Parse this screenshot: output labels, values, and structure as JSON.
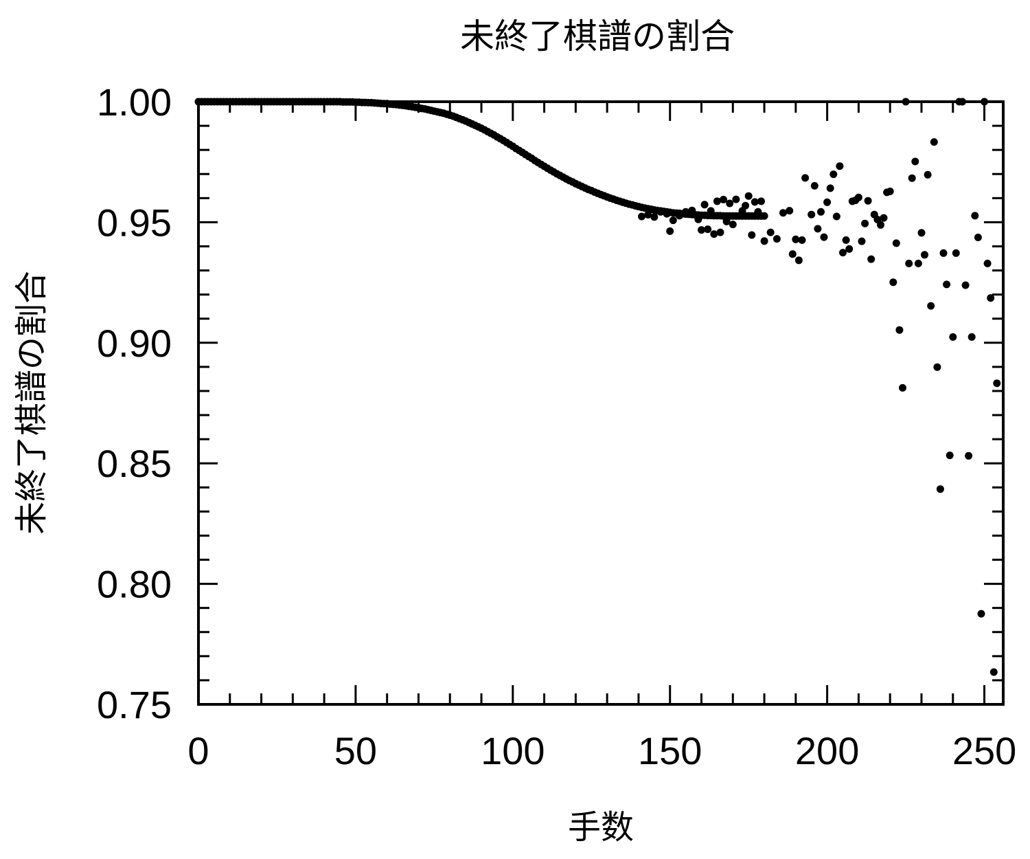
{
  "chart_data": {
    "type": "scatter",
    "title": "未終了棋譜の割合",
    "xlabel": "手数",
    "ylabel": "未終了棋譜の割合",
    "xlim": [
      0,
      256
    ],
    "ylim": [
      0.75,
      1.0
    ],
    "x_ticks": [
      0,
      50,
      100,
      150,
      200,
      250
    ],
    "x_tick_labels": [
      "0",
      "50",
      "100",
      "150",
      "200",
      "250"
    ],
    "y_ticks": [
      0.75,
      0.8,
      0.85,
      0.9,
      0.95,
      1.0
    ],
    "y_tick_labels": [
      "0.75",
      "0.80",
      "0.85",
      "0.90",
      "0.95",
      "1.00"
    ],
    "grid": false,
    "marker_color": "#000000",
    "points": [
      [
        0,
        1.0
      ],
      [
        1,
        1.0
      ],
      [
        2,
        1.0
      ],
      [
        3,
        1.0
      ],
      [
        4,
        1.0
      ],
      [
        5,
        1.0
      ],
      [
        6,
        1.0
      ],
      [
        7,
        1.0
      ],
      [
        8,
        1.0
      ],
      [
        9,
        1.0
      ],
      [
        10,
        1.0
      ],
      [
        11,
        1.0
      ],
      [
        12,
        1.0
      ],
      [
        13,
        1.0
      ],
      [
        14,
        1.0
      ],
      [
        15,
        1.0
      ],
      [
        16,
        1.0
      ],
      [
        17,
        1.0
      ],
      [
        18,
        1.0
      ],
      [
        19,
        1.0
      ],
      [
        20,
        1.0
      ],
      [
        21,
        1.0
      ],
      [
        22,
        1.0
      ],
      [
        23,
        1.0
      ],
      [
        24,
        1.0
      ],
      [
        25,
        1.0
      ],
      [
        26,
        1.0
      ],
      [
        27,
        1.0
      ],
      [
        28,
        1.0
      ],
      [
        29,
        1.0
      ],
      [
        30,
        1.0
      ],
      [
        31,
        1.0
      ],
      [
        32,
        1.0
      ],
      [
        33,
        1.0
      ],
      [
        34,
        1.0
      ],
      [
        35,
        1.0
      ],
      [
        36,
        1.0
      ],
      [
        37,
        1.0
      ],
      [
        38,
        1.0
      ],
      [
        39,
        1.0
      ],
      [
        40,
        1.0
      ],
      [
        41,
        1.0
      ],
      [
        42,
        1.0
      ],
      [
        43,
        1.0
      ],
      [
        44,
        1.0
      ],
      [
        45,
        1.0
      ],
      [
        46,
        0.9999
      ],
      [
        47,
        0.9999
      ],
      [
        48,
        0.9999
      ],
      [
        49,
        0.9999
      ],
      [
        50,
        0.9998
      ],
      [
        51,
        0.9998
      ],
      [
        52,
        0.9997
      ],
      [
        53,
        0.9997
      ],
      [
        54,
        0.9996
      ],
      [
        55,
        0.9996
      ],
      [
        56,
        0.9995
      ],
      [
        57,
        0.9994
      ],
      [
        58,
        0.9993
      ],
      [
        59,
        0.9992
      ],
      [
        60,
        0.9992
      ],
      [
        61,
        0.999
      ],
      [
        62,
        0.9989
      ],
      [
        63,
        0.9988
      ],
      [
        64,
        0.9986
      ],
      [
        65,
        0.9985
      ],
      [
        66,
        0.9983
      ],
      [
        67,
        0.9981
      ],
      [
        68,
        0.9979
      ],
      [
        69,
        0.9977
      ],
      [
        70,
        0.9975
      ],
      [
        71,
        0.9972
      ],
      [
        72,
        0.997
      ],
      [
        73,
        0.9967
      ],
      [
        74,
        0.9964
      ],
      [
        75,
        0.9961
      ],
      [
        76,
        0.9958
      ],
      [
        77,
        0.9955
      ],
      [
        78,
        0.9952
      ],
      [
        79,
        0.9948
      ],
      [
        80,
        0.9944
      ],
      [
        81,
        0.994
      ],
      [
        82,
        0.9935
      ],
      [
        83,
        0.993
      ],
      [
        84,
        0.9925
      ],
      [
        85,
        0.992
      ],
      [
        86,
        0.9914
      ],
      [
        87,
        0.9908
      ],
      [
        88,
        0.9902
      ],
      [
        89,
        0.9896
      ],
      [
        90,
        0.989
      ],
      [
        91,
        0.9883
      ],
      [
        92,
        0.9876
      ],
      [
        93,
        0.9869
      ],
      [
        94,
        0.9862
      ],
      [
        95,
        0.9854
      ],
      [
        96,
        0.9847
      ],
      [
        97,
        0.9839
      ],
      [
        98,
        0.9831
      ],
      [
        99,
        0.9823
      ],
      [
        100,
        0.9815
      ],
      [
        101,
        0.9806
      ],
      [
        102,
        0.9798
      ],
      [
        103,
        0.979
      ],
      [
        104,
        0.9781
      ],
      [
        105,
        0.9773
      ],
      [
        106,
        0.9765
      ],
      [
        107,
        0.9756
      ],
      [
        108,
        0.9748
      ],
      [
        109,
        0.974
      ],
      [
        110,
        0.9732
      ],
      [
        111,
        0.9724
      ],
      [
        112,
        0.9716
      ],
      [
        113,
        0.9709
      ],
      [
        114,
        0.9701
      ],
      [
        115,
        0.9694
      ],
      [
        116,
        0.9687
      ],
      [
        117,
        0.968
      ],
      [
        118,
        0.9673
      ],
      [
        119,
        0.9667
      ],
      [
        120,
        0.966
      ],
      [
        121,
        0.9654
      ],
      [
        122,
        0.9648
      ],
      [
        123,
        0.9642
      ],
      [
        124,
        0.9636
      ],
      [
        125,
        0.9631
      ],
      [
        126,
        0.9625
      ],
      [
        127,
        0.962
      ],
      [
        128,
        0.9615
      ],
      [
        129,
        0.961
      ],
      [
        130,
        0.9605
      ],
      [
        131,
        0.96
      ],
      [
        132,
        0.9596
      ],
      [
        133,
        0.9591
      ],
      [
        134,
        0.9587
      ],
      [
        135,
        0.9583
      ],
      [
        136,
        0.9579
      ],
      [
        137,
        0.9575
      ],
      [
        138,
        0.9572
      ],
      [
        139,
        0.9568
      ],
      [
        140,
        0.9565
      ],
      [
        141,
        0.9562
      ],
      [
        142,
        0.9559
      ],
      [
        143,
        0.9556
      ],
      [
        144,
        0.9554
      ],
      [
        145,
        0.9551
      ],
      [
        146,
        0.9549
      ],
      [
        147,
        0.9547
      ],
      [
        148,
        0.9545
      ],
      [
        149,
        0.9543
      ],
      [
        150,
        0.9541
      ],
      [
        151,
        0.9539
      ],
      [
        152,
        0.9538
      ],
      [
        153,
        0.9537
      ],
      [
        154,
        0.9535
      ],
      [
        155,
        0.9534
      ],
      [
        156,
        0.9533
      ],
      [
        157,
        0.9532
      ],
      [
        158,
        0.9531
      ],
      [
        159,
        0.953
      ],
      [
        160,
        0.9529
      ],
      [
        161,
        0.9529
      ],
      [
        162,
        0.9528
      ],
      [
        163,
        0.9528
      ],
      [
        164,
        0.9527
      ],
      [
        165,
        0.9527
      ],
      [
        166,
        0.9527
      ],
      [
        167,
        0.9526
      ],
      [
        168,
        0.9526
      ],
      [
        169,
        0.9526
      ],
      [
        170,
        0.9526
      ],
      [
        171,
        0.9526
      ],
      [
        172,
        0.9526
      ],
      [
        173,
        0.9526
      ],
      [
        174,
        0.9526
      ],
      [
        175,
        0.9526
      ],
      [
        176,
        0.9526
      ],
      [
        177,
        0.9526
      ],
      [
        178,
        0.9526
      ],
      [
        179,
        0.9526
      ],
      [
        180,
        0.9526
      ],
      [
        18,
        1.0
      ],
      [
        141,
        0.9524
      ],
      [
        143,
        0.9531
      ],
      [
        145,
        0.9522
      ],
      [
        147,
        0.9543
      ],
      [
        149,
        0.9535
      ],
      [
        151,
        0.9508
      ],
      [
        153,
        0.9527
      ],
      [
        155,
        0.9543
      ],
      [
        157,
        0.9549
      ],
      [
        159,
        0.9512
      ],
      [
        161,
        0.9573
      ],
      [
        163,
        0.9547
      ],
      [
        165,
        0.9587
      ],
      [
        167,
        0.9594
      ],
      [
        169,
        0.9578
      ],
      [
        171,
        0.9595
      ],
      [
        173,
        0.9547
      ],
      [
        175,
        0.9609
      ],
      [
        177,
        0.9584
      ],
      [
        179,
        0.9587
      ],
      [
        150,
        0.9463
      ],
      [
        160,
        0.9468
      ],
      [
        162,
        0.9471
      ],
      [
        164,
        0.9451
      ],
      [
        166,
        0.9458
      ],
      [
        168,
        0.9503
      ],
      [
        170,
        0.9491
      ],
      [
        174,
        0.9569
      ],
      [
        176,
        0.9447
      ],
      [
        178,
        0.9543
      ],
      [
        180,
        0.9422
      ],
      [
        182,
        0.9458
      ],
      [
        184,
        0.9431
      ],
      [
        186,
        0.9539
      ],
      [
        188,
        0.9548
      ],
      [
        190,
        0.9429
      ],
      [
        189,
        0.9368
      ],
      [
        191,
        0.9342
      ],
      [
        192,
        0.9426
      ],
      [
        193,
        0.9684
      ],
      [
        195,
        0.9532
      ],
      [
        196,
        0.9651
      ],
      [
        197,
        0.9473
      ],
      [
        198,
        0.9543
      ],
      [
        199,
        0.9438
      ],
      [
        200,
        0.9583
      ],
      [
        201,
        0.9641
      ],
      [
        202,
        0.9699
      ],
      [
        203,
        0.9524
      ],
      [
        204,
        0.9733
      ],
      [
        205,
        0.9374
      ],
      [
        206,
        0.9426
      ],
      [
        207,
        0.9389
      ],
      [
        208,
        0.9587
      ],
      [
        209,
        0.9591
      ],
      [
        210,
        0.9603
      ],
      [
        211,
        0.9421
      ],
      [
        212,
        0.9495
      ],
      [
        213,
        0.9589
      ],
      [
        214,
        0.9347
      ],
      [
        215,
        0.9532
      ],
      [
        216,
        0.9511
      ],
      [
        217,
        0.9489
      ],
      [
        218,
        0.9518
      ],
      [
        219,
        0.9624
      ],
      [
        220,
        0.9628
      ],
      [
        221,
        0.9251
      ],
      [
        222,
        0.9413
      ],
      [
        223,
        0.9053
      ],
      [
        224,
        0.8813
      ],
      [
        225,
        1.0
      ],
      [
        226,
        0.9329
      ],
      [
        227,
        0.9683
      ],
      [
        228,
        0.9752
      ],
      [
        229,
        0.9329
      ],
      [
        230,
        0.9456
      ],
      [
        231,
        0.9365
      ],
      [
        232,
        0.9697
      ],
      [
        233,
        0.9153
      ],
      [
        234,
        0.9833
      ],
      [
        235,
        0.8899
      ],
      [
        236,
        0.8393
      ],
      [
        237,
        0.9372
      ],
      [
        238,
        0.9242
      ],
      [
        239,
        0.8533
      ],
      [
        240,
        0.9024
      ],
      [
        241,
        0.9372
      ],
      [
        242,
        1.0
      ],
      [
        243,
        1.0
      ],
      [
        244,
        0.9239
      ],
      [
        245,
        0.8531
      ],
      [
        246,
        0.9024
      ],
      [
        247,
        0.9527
      ],
      [
        248,
        0.9437
      ],
      [
        249,
        0.7876
      ],
      [
        250,
        1.0
      ],
      [
        251,
        0.9329
      ],
      [
        252,
        0.9186
      ],
      [
        253,
        0.7634
      ],
      [
        254,
        0.8832
      ]
    ]
  }
}
